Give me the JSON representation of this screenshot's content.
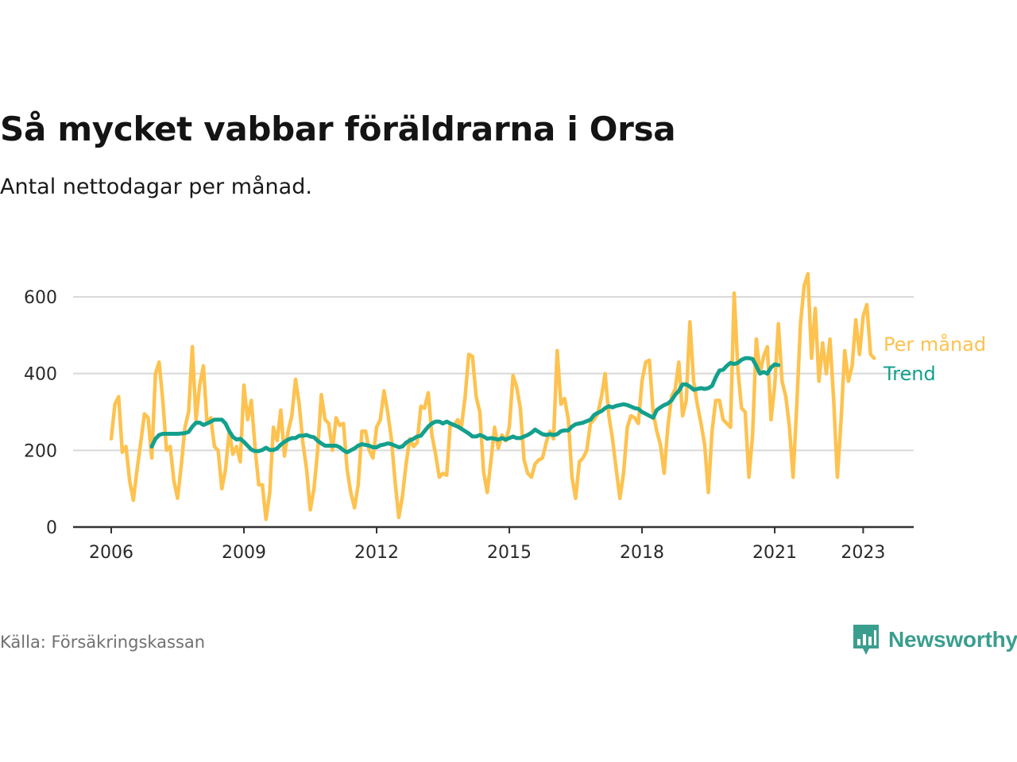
{
  "title": "Så mycket vabbar föräldrarna i Orsa",
  "subtitle": "Antal nettodagar per månad.",
  "source": "Källa: Försäkringskassan",
  "brand": {
    "name": "Newsworthy",
    "icon": "newsworthy-logo-icon",
    "color": "#3a9e8f"
  },
  "chart_data": {
    "type": "line",
    "ylim": [
      0,
      700
    ],
    "yticks": [
      0,
      200,
      400,
      600
    ],
    "xticks": [
      "2006",
      "2009",
      "2012",
      "2015",
      "2018",
      "2021",
      "2023"
    ],
    "grid": true,
    "legend_placement": "right, at line ends",
    "series": [
      {
        "name": "Per månad",
        "color": "#fdc24f",
        "start": "2006-01",
        "values": [
          230,
          320,
          340,
          195,
          210,
          120,
          70,
          150,
          220,
          295,
          285,
          180,
          400,
          430,
          330,
          200,
          210,
          120,
          75,
          160,
          260,
          300,
          470,
          280,
          370,
          420,
          270,
          285,
          210,
          200,
          100,
          150,
          250,
          190,
          210,
          170,
          370,
          280,
          330,
          210,
          110,
          110,
          20,
          90,
          260,
          225,
          305,
          185,
          250,
          290,
          385,
          320,
          220,
          150,
          45,
          100,
          200,
          345,
          280,
          270,
          200,
          285,
          265,
          270,
          150,
          90,
          50,
          110,
          250,
          250,
          200,
          180,
          260,
          280,
          355,
          300,
          230,
          120,
          25,
          80,
          165,
          230,
          210,
          220,
          315,
          310,
          350,
          240,
          190,
          130,
          140,
          135,
          270,
          265,
          280,
          260,
          340,
          450,
          445,
          340,
          300,
          145,
          90,
          170,
          260,
          205,
          240,
          225,
          260,
          395,
          365,
          310,
          175,
          140,
          130,
          165,
          175,
          180,
          220,
          250,
          230,
          460,
          320,
          335,
          280,
          130,
          75,
          170,
          180,
          200,
          270,
          280,
          295,
          340,
          400,
          290,
          230,
          150,
          75,
          140,
          260,
          290,
          285,
          270,
          380,
          430,
          435,
          300,
          250,
          215,
          140,
          260,
          340,
          360,
          430,
          290,
          330,
          535,
          380,
          320,
          270,
          215,
          90,
          250,
          330,
          330,
          280,
          270,
          260,
          610,
          410,
          310,
          300,
          130,
          240,
          490,
          400,
          445,
          470,
          280,
          370,
          530,
          380,
          340,
          260,
          130,
          320,
          530,
          630,
          660,
          440,
          570,
          380,
          480,
          400,
          490,
          330,
          130,
          280,
          460,
          380,
          420,
          540,
          450,
          550,
          580,
          450,
          440
        ]
      },
      {
        "name": "Trend",
        "color": "#13a08d",
        "start": "2006-12",
        "values": [
          210,
          230,
          240,
          243,
          243,
          243,
          243,
          243,
          244,
          245,
          248,
          262,
          272,
          272,
          266,
          270,
          275,
          280,
          280,
          280,
          270,
          250,
          235,
          228,
          230,
          222,
          212,
          202,
          198,
          198,
          201,
          207,
          201,
          201,
          205,
          215,
          222,
          228,
          232,
          232,
          238,
          238,
          240,
          236,
          234,
          225,
          218,
          212,
          212,
          212,
          212,
          208,
          200,
          195,
          200,
          205,
          212,
          216,
          214,
          212,
          208,
          208,
          213,
          215,
          218,
          216,
          212,
          208,
          210,
          220,
          226,
          230,
          236,
          238,
          250,
          262,
          270,
          275,
          275,
          270,
          275,
          270,
          266,
          262,
          256,
          250,
          244,
          236,
          236,
          240,
          236,
          230,
          232,
          230,
          228,
          232,
          228,
          232,
          236,
          232,
          232,
          236,
          240,
          246,
          254,
          248,
          242,
          240,
          242,
          240,
          242,
          250,
          252,
          252,
          262,
          268,
          270,
          272,
          276,
          280,
          292,
          298,
          302,
          310,
          315,
          312,
          316,
          318,
          320,
          318,
          314,
          310,
          308,
          300,
          295,
          290,
          285,
          305,
          312,
          318,
          322,
          330,
          345,
          355,
          372,
          372,
          366,
          358,
          360,
          362,
          360,
          362,
          368,
          390,
          408,
          410,
          420,
          428,
          425,
          428,
          436,
          440,
          440,
          438,
          420,
          400,
          404,
          400,
          416,
          424,
          422
        ]
      }
    ]
  }
}
